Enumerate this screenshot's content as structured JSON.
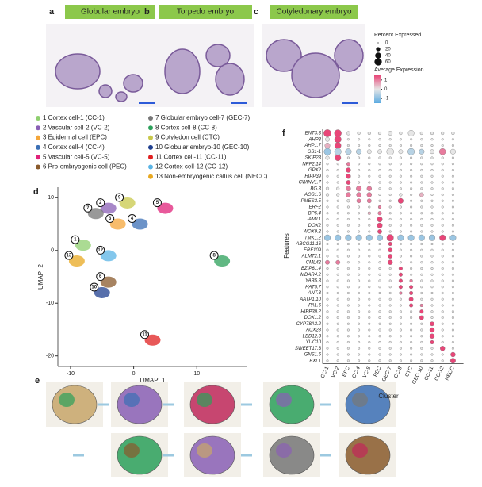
{
  "panels": [
    {
      "label": "a",
      "title": "Globular embryo"
    },
    {
      "label": "b",
      "title": "Torpedo embryo"
    },
    {
      "label": "c",
      "title": "Cotyledonary  embryo"
    }
  ],
  "cluster_legend": [
    {
      "label": "1 Cortex cell-1 (CC-1)",
      "color": "#8fcf6f"
    },
    {
      "label": "2 Vascular cell-2 (VC-2)",
      "color": "#8a5fb5"
    },
    {
      "label": "3 Epidermal cell (EPC)",
      "color": "#f4a63a"
    },
    {
      "label": "4 Cortex cell-4 (CC-4)",
      "color": "#3b6fb5"
    },
    {
      "label": "5 Vascular cell-5 (VC-5)",
      "color": "#e0227a"
    },
    {
      "label": "6 Pro-embryogenic cell (PEC)",
      "color": "#8a5a2c"
    },
    {
      "label": "7 Globular embryo cell-7 (GEC-7)",
      "color": "#777777"
    },
    {
      "label": "8 Cortex cell-8 (CC-8)",
      "color": "#2ca05a"
    },
    {
      "label": "9 Cotyledon  cell (CTC)",
      "color": "#c8c84a"
    },
    {
      "label": "10 Globular embryo-10 (GEC-10)",
      "color": "#1f3f8f"
    },
    {
      "label": "11 Cortex cell-11 (CC-11)",
      "color": "#e02020"
    },
    {
      "label": "12 Cortex cell-12 (CC-12)",
      "color": "#5ab4e5"
    },
    {
      "label": "13 Non-embryogenic callus cell (NECC)",
      "color": "#e8a820"
    }
  ],
  "umap": {
    "label": "d",
    "xlabel": "UMAP_1",
    "ylabel": "UMAP_2",
    "xlim": [
      -12,
      18
    ],
    "ylim": [
      -22,
      12
    ],
    "xticks": [
      -10,
      0,
      10
    ],
    "yticks": [
      10,
      0,
      -10,
      -20
    ],
    "clusters": [
      {
        "label": "1",
        "x": -8,
        "y": 1
      },
      {
        "label": "2",
        "x": -4,
        "y": 8
      },
      {
        "label": "3",
        "x": -2.5,
        "y": 5
      },
      {
        "label": "4",
        "x": 1,
        "y": 5
      },
      {
        "label": "5",
        "x": 5,
        "y": 8
      },
      {
        "label": "6",
        "x": -4,
        "y": -6
      },
      {
        "label": "7",
        "x": -6,
        "y": 7
      },
      {
        "label": "8",
        "x": 14,
        "y": -2
      },
      {
        "label": "9",
        "x": -1,
        "y": 9
      },
      {
        "label": "10",
        "x": -5,
        "y": -8
      },
      {
        "label": "11",
        "x": 3,
        "y": -17
      },
      {
        "label": "12",
        "x": -4,
        "y": -1
      },
      {
        "label": "13",
        "x": -9,
        "y": -2
      }
    ]
  },
  "spatial": {
    "label": "e"
  },
  "dotplot": {
    "label": "f",
    "xlabel": "Cluster",
    "ylabel": "Features",
    "features": [
      "ENT3.3",
      "AHP3",
      "AHP1.7",
      "GS1-1",
      "SKIP23",
      "NPF2.14",
      "GPX2",
      "HIPP39",
      "CWINV1.7",
      "BG.3",
      "AOS1.6",
      "PMES3.5",
      "ERF2",
      "BP5.4",
      "IAMT1",
      "DOX2",
      "WOX9.2",
      "TMK1.2",
      "ABCG11.16",
      "ERF109",
      "ALMT2.1",
      "CML42",
      "BZIP61.4",
      "MDAR4.2",
      "YAB5.3",
      "HAT5.7",
      "ANT.3",
      "AATP1.10",
      "PAL.6",
      "HIPP39.2",
      "DOX1.2",
      "CYP78A3.2",
      "AUX28",
      "LBD12.3",
      "YUC10",
      "SWEET17.3",
      "GNS1.6",
      "BXL1"
    ],
    "clusters": [
      "CC-1",
      "VC-2",
      "EPC",
      "CC-4",
      "VC-5",
      "PEC",
      "GEC-7",
      "CC-8",
      "CTC",
      "GEC-10",
      "CC-11",
      "CC-12",
      "NECC"
    ],
    "percent": [
      [
        60,
        55,
        15,
        10,
        10,
        10,
        20,
        10,
        40,
        10,
        10,
        10,
        10
      ],
      [
        20,
        50,
        5,
        5,
        5,
        5,
        5,
        5,
        5,
        5,
        5,
        5,
        5
      ],
      [
        30,
        45,
        5,
        5,
        5,
        5,
        5,
        5,
        5,
        5,
        5,
        5,
        5
      ],
      [
        50,
        50,
        40,
        30,
        20,
        20,
        55,
        20,
        50,
        30,
        20,
        45,
        30
      ],
      [
        15,
        40,
        5,
        5,
        5,
        5,
        5,
        5,
        5,
        5,
        5,
        5,
        5
      ],
      [
        5,
        5,
        15,
        5,
        5,
        5,
        5,
        5,
        5,
        5,
        5,
        5,
        5
      ],
      [
        5,
        5,
        25,
        5,
        5,
        5,
        5,
        5,
        5,
        5,
        5,
        5,
        5
      ],
      [
        5,
        5,
        25,
        5,
        5,
        5,
        5,
        5,
        5,
        5,
        5,
        5,
        5
      ],
      [
        5,
        5,
        20,
        5,
        5,
        5,
        5,
        5,
        5,
        5,
        5,
        5,
        5
      ],
      [
        10,
        10,
        25,
        30,
        25,
        5,
        5,
        5,
        5,
        5,
        5,
        5,
        5
      ],
      [
        10,
        10,
        25,
        25,
        25,
        5,
        5,
        10,
        5,
        20,
        5,
        5,
        5
      ],
      [
        5,
        5,
        10,
        20,
        20,
        5,
        5,
        30,
        5,
        5,
        5,
        5,
        5
      ],
      [
        5,
        5,
        5,
        5,
        5,
        10,
        5,
        5,
        5,
        5,
        5,
        5,
        5
      ],
      [
        5,
        5,
        5,
        5,
        10,
        15,
        5,
        5,
        5,
        5,
        5,
        5,
        5
      ],
      [
        5,
        5,
        5,
        5,
        5,
        30,
        5,
        5,
        5,
        5,
        5,
        5,
        5
      ],
      [
        5,
        5,
        5,
        5,
        5,
        30,
        5,
        5,
        5,
        5,
        5,
        5,
        5
      ],
      [
        5,
        5,
        5,
        5,
        5,
        20,
        5,
        5,
        5,
        5,
        5,
        5,
        5
      ],
      [
        40,
        40,
        40,
        40,
        40,
        40,
        50,
        40,
        40,
        40,
        40,
        40,
        40
      ],
      [
        5,
        5,
        5,
        5,
        5,
        5,
        15,
        5,
        5,
        5,
        5,
        5,
        5
      ],
      [
        5,
        5,
        5,
        5,
        5,
        5,
        20,
        5,
        5,
        5,
        5,
        5,
        5
      ],
      [
        5,
        5,
        5,
        5,
        5,
        5,
        20,
        5,
        5,
        5,
        5,
        5,
        5
      ],
      [
        20,
        20,
        5,
        5,
        5,
        5,
        25,
        5,
        5,
        5,
        5,
        5,
        5
      ],
      [
        5,
        5,
        5,
        5,
        5,
        5,
        5,
        15,
        5,
        5,
        5,
        5,
        5
      ],
      [
        5,
        5,
        5,
        5,
        5,
        5,
        5,
        15,
        5,
        5,
        5,
        5,
        5
      ],
      [
        5,
        5,
        5,
        5,
        5,
        5,
        5,
        15,
        10,
        5,
        5,
        5,
        5
      ],
      [
        5,
        5,
        5,
        5,
        5,
        5,
        5,
        15,
        15,
        5,
        5,
        5,
        5
      ],
      [
        5,
        5,
        5,
        5,
        5,
        5,
        5,
        10,
        15,
        5,
        5,
        5,
        5
      ],
      [
        5,
        5,
        5,
        5,
        5,
        5,
        5,
        5,
        20,
        5,
        5,
        5,
        5
      ],
      [
        5,
        5,
        5,
        5,
        5,
        5,
        5,
        5,
        15,
        10,
        5,
        5,
        5
      ],
      [
        5,
        5,
        5,
        5,
        5,
        5,
        5,
        5,
        5,
        15,
        5,
        5,
        5
      ],
      [
        5,
        5,
        5,
        5,
        5,
        5,
        5,
        5,
        5,
        20,
        5,
        5,
        5
      ],
      [
        5,
        5,
        5,
        5,
        5,
        5,
        5,
        5,
        5,
        5,
        20,
        5,
        5
      ],
      [
        5,
        5,
        5,
        5,
        5,
        5,
        5,
        5,
        5,
        5,
        25,
        5,
        5
      ],
      [
        5,
        5,
        5,
        5,
        5,
        5,
        5,
        5,
        5,
        5,
        25,
        5,
        5
      ],
      [
        5,
        5,
        5,
        5,
        5,
        5,
        5,
        5,
        5,
        5,
        15,
        5,
        5
      ],
      [
        5,
        5,
        5,
        5,
        5,
        5,
        5,
        5,
        5,
        5,
        5,
        25,
        5
      ],
      [
        5,
        5,
        5,
        5,
        5,
        5,
        5,
        5,
        5,
        5,
        5,
        5,
        25
      ],
      [
        5,
        5,
        5,
        5,
        5,
        5,
        5,
        5,
        5,
        5,
        5,
        5,
        30
      ]
    ],
    "expression": [
      [
        1.5,
        1.5,
        0,
        0,
        0,
        0,
        0,
        0,
        0,
        0,
        0,
        0,
        0
      ],
      [
        0,
        1.5,
        0,
        0,
        0,
        0,
        0,
        0,
        0,
        0,
        0,
        0,
        0
      ],
      [
        0.5,
        1.5,
        0,
        0,
        0,
        0,
        0,
        0,
        0,
        0,
        0,
        0,
        0
      ],
      [
        -0.8,
        -0.5,
        -0.5,
        -0.5,
        0,
        0,
        0,
        0,
        -0.5,
        -0.5,
        0,
        1,
        0
      ],
      [
        0,
        1.5,
        0,
        0,
        0,
        0,
        0,
        0,
        0,
        0,
        0,
        0,
        0
      ],
      [
        0,
        0,
        1,
        0,
        0,
        0,
        0,
        0,
        0,
        0,
        0,
        0,
        0
      ],
      [
        0,
        0,
        1.5,
        0,
        0,
        0,
        0,
        0,
        0,
        0,
        0,
        0,
        0
      ],
      [
        0,
        0,
        1.5,
        0,
        0,
        0,
        0,
        0,
        0,
        0,
        0,
        0,
        0
      ],
      [
        0,
        0,
        1.5,
        0,
        0,
        0,
        0,
        0,
        0,
        0,
        0,
        0,
        0
      ],
      [
        0,
        0,
        1,
        1,
        1,
        0,
        0,
        0,
        0,
        0,
        0,
        0,
        0
      ],
      [
        0,
        0,
        1,
        1,
        1,
        0,
        0,
        0,
        0,
        0.5,
        0,
        0,
        0
      ],
      [
        0,
        0,
        0,
        1,
        1,
        0,
        0,
        1.5,
        0,
        0,
        0,
        0,
        0
      ],
      [
        0,
        0,
        0,
        0,
        0,
        1,
        0,
        0,
        0,
        0,
        0,
        0,
        0
      ],
      [
        0,
        0,
        0,
        0,
        0.5,
        1,
        0,
        0,
        0,
        0,
        0,
        0,
        0
      ],
      [
        0,
        0,
        0,
        0,
        0,
        1.5,
        0,
        0,
        0,
        0,
        0,
        0,
        0
      ],
      [
        0,
        0,
        0,
        0,
        0,
        1.5,
        0,
        0,
        0,
        0,
        0,
        0,
        0
      ],
      [
        0,
        0,
        0,
        0,
        0,
        1.5,
        0,
        0,
        0,
        0,
        0,
        0,
        0
      ],
      [
        -0.8,
        -0.8,
        -0.8,
        -0.8,
        -0.8,
        -0.8,
        1.5,
        -0.8,
        -0.8,
        -0.8,
        -0.8,
        1.5,
        -0.8
      ],
      [
        0,
        0,
        0,
        0,
        0,
        0,
        1.5,
        0,
        0,
        0,
        0,
        0,
        0
      ],
      [
        0,
        0,
        0,
        0,
        0,
        0,
        1.5,
        0,
        0,
        0,
        0,
        0,
        0
      ],
      [
        0,
        0,
        0,
        0,
        0,
        0,
        1.5,
        0,
        0,
        0,
        0,
        0,
        0
      ],
      [
        1,
        1,
        0,
        0,
        0,
        0,
        1.5,
        0,
        0,
        0,
        0,
        0,
        0
      ],
      [
        0,
        0,
        0,
        0,
        0,
        0,
        0,
        1.5,
        0,
        0,
        0,
        0,
        0
      ],
      [
        0,
        0,
        0,
        0,
        0,
        0,
        0,
        1.5,
        0,
        0,
        0,
        0,
        0
      ],
      [
        0,
        0,
        0,
        0,
        0,
        0,
        0,
        1.5,
        1,
        0,
        0,
        0,
        0
      ],
      [
        0,
        0,
        0,
        0,
        0,
        0,
        0,
        1.5,
        1.5,
        0,
        0,
        0,
        0
      ],
      [
        0,
        0,
        0,
        0,
        0,
        0,
        0,
        1,
        1.5,
        0,
        0,
        0,
        0
      ],
      [
        0,
        0,
        0,
        0,
        0,
        0,
        0,
        0,
        1.5,
        0,
        0,
        0,
        0
      ],
      [
        0,
        0,
        0,
        0,
        0,
        0,
        0,
        0,
        1.5,
        1,
        0,
        0,
        0
      ],
      [
        0,
        0,
        0,
        0,
        0,
        0,
        0,
        0,
        0,
        1.5,
        0,
        0,
        0
      ],
      [
        0,
        0,
        0,
        0,
        0,
        0,
        0,
        0,
        0,
        1.5,
        0,
        0,
        0
      ],
      [
        0,
        0,
        0,
        0,
        0,
        0,
        0,
        0,
        0,
        0,
        1.5,
        0,
        0
      ],
      [
        0,
        0,
        0,
        0,
        0,
        0,
        0,
        0,
        0,
        0,
        1.5,
        0,
        0
      ],
      [
        0,
        0,
        0,
        0,
        0,
        0,
        0,
        0,
        0,
        0,
        1.5,
        0,
        0
      ],
      [
        0,
        0,
        0,
        0,
        0,
        0,
        0,
        0,
        0,
        0,
        1.5,
        0,
        0
      ],
      [
        0,
        0,
        0,
        0,
        0,
        0,
        0,
        0,
        0,
        0,
        0,
        1.5,
        0
      ],
      [
        0,
        0,
        0,
        0,
        0,
        0,
        0,
        0,
        0,
        0,
        0,
        0,
        1.5
      ],
      [
        0,
        0,
        0,
        0,
        0,
        0,
        0,
        0,
        0,
        0,
        0,
        0,
        1.5
      ]
    ],
    "size_legend": {
      "title": "Percent Expressed",
      "ticks": [
        0,
        20,
        40,
        60
      ]
    },
    "color_legend": {
      "title": "Average Expression",
      "ticks": [
        1,
        0,
        -1
      ],
      "color_lim": [
        -1.5,
        1.5
      ]
    }
  }
}
